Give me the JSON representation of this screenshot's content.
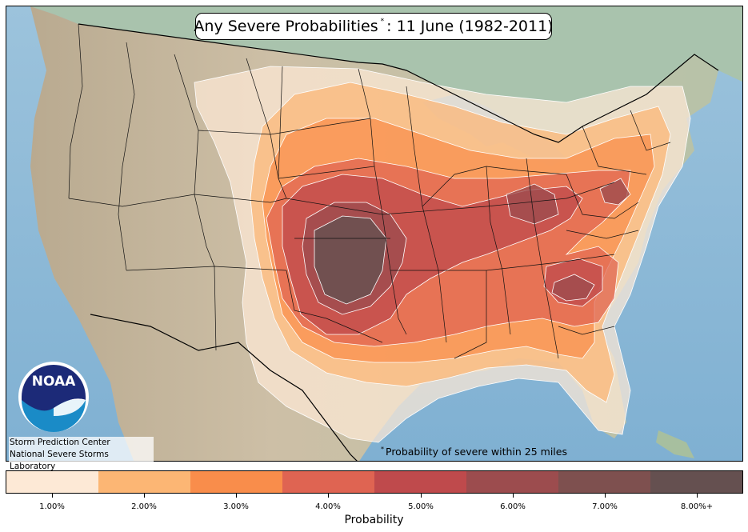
{
  "title": {
    "prefix": "Any Severe Probabilities",
    "marker": "*",
    "suffix": ": 11 June (1982-2011)"
  },
  "logo": {
    "text": "NOAA",
    "icon": "noaa-logo-icon"
  },
  "credits": {
    "line1": "Storm Prediction Center",
    "line2": "National Severe Storms Laboratory"
  },
  "footnote": {
    "marker": "*",
    "text": "Probability of severe within 25 miles"
  },
  "legend": {
    "title": "Probability",
    "items": [
      {
        "label": "1.00%",
        "color": "#fde9d6"
      },
      {
        "label": "2.00%",
        "color": "#fcb674"
      },
      {
        "label": "3.00%",
        "color": "#f98d4b"
      },
      {
        "label": "4.00%",
        "color": "#df6452"
      },
      {
        "label": "5.00%",
        "color": "#bf4a4c"
      },
      {
        "label": "6.00%",
        "color": "#9c4c4e"
      },
      {
        "label": "7.00%",
        "color": "#7e504f"
      },
      {
        "label": "8.00%+",
        "color": "#655050"
      }
    ]
  },
  "colors": {
    "ocean": "#8fb9d6",
    "land": "#c8b79e",
    "canada": "#a9c3ad",
    "mexico": "#c9b9a0"
  }
}
